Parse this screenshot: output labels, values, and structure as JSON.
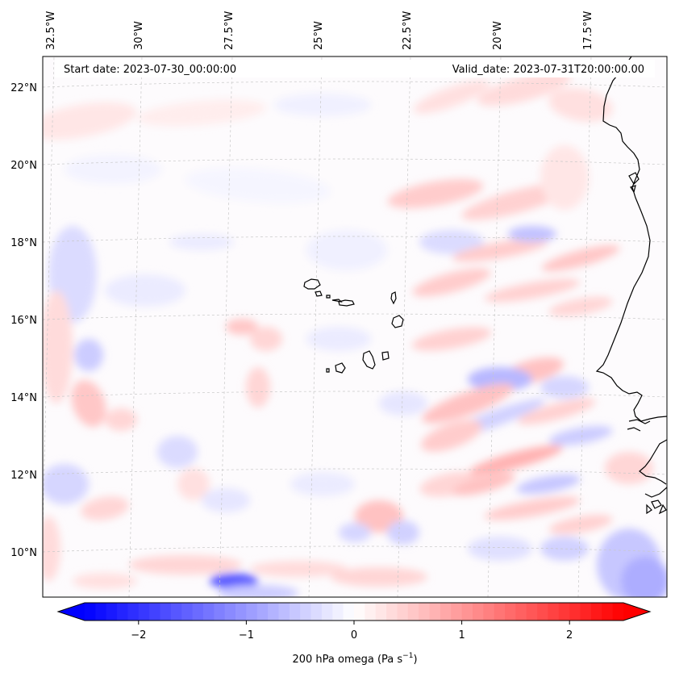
{
  "header": {
    "start_date": "Start date: 2023-07-30_00:00:00",
    "valid_date": "Valid_date: 2023-07-31T20:00:00.00"
  },
  "axes": {
    "lon_labels": [
      "32.5°W",
      "30°W",
      "27.5°W",
      "25°W",
      "22.5°W",
      "20°W",
      "17.5°W"
    ],
    "lat_labels": [
      "22°N",
      "20°N",
      "18°N",
      "16°N",
      "14°N",
      "12°N",
      "10°N"
    ]
  },
  "colorbar": {
    "ticks": [
      "−2",
      "−1",
      "0",
      "1",
      "2"
    ],
    "tick_values": [
      -2,
      -1,
      0,
      1,
      2
    ],
    "range": [
      -2.5,
      2.5
    ],
    "label_main": "200 hPa omega (Pa s",
    "label_sup": "−1",
    "label_close": ")",
    "colors": {
      "min": "#0000ff",
      "mid": "#ffffff",
      "max": "#ff0000"
    }
  },
  "map": {
    "coastline_color": "#000000",
    "gridline_color": "#c8c8c8"
  }
}
